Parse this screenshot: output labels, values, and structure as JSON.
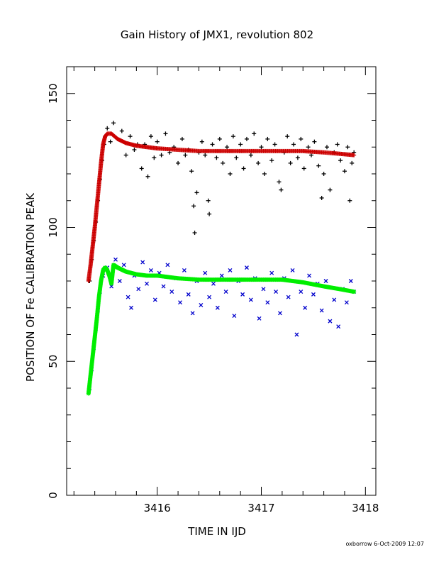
{
  "footer": "oxborrow   6-Oct-2009 12:07",
  "chart_data": {
    "type": "scatter",
    "title": "Gain History of JMX1, revolution 802",
    "xlabel": "TIME IN IJD",
    "ylabel": "POSITION OF Fe CALIBRATION PEAK",
    "xlim": [
      3415.13,
      3418.1
    ],
    "ylim": [
      0,
      160
    ],
    "xticks": [
      3416,
      3417,
      3418
    ],
    "xtick_labels": [
      "3416",
      "3417",
      "3418"
    ],
    "yticks": [
      0,
      50,
      100,
      150
    ],
    "ytick_labels": [
      "0",
      "50",
      "100",
      "150"
    ],
    "grid": false,
    "legend": "none",
    "series": [
      {
        "marker": "plus",
        "color": "#000000",
        "values": [
          [
            3415.35,
            80
          ],
          [
            3415.37,
            88
          ],
          [
            3415.39,
            95
          ],
          [
            3415.41,
            102
          ],
          [
            3415.43,
            110
          ],
          [
            3415.45,
            118
          ],
          [
            3415.47,
            125
          ],
          [
            3415.49,
            131
          ],
          [
            3415.5,
            134
          ],
          [
            3415.52,
            137
          ],
          [
            3415.55,
            132
          ],
          [
            3415.58,
            139
          ],
          [
            3415.62,
            133
          ],
          [
            3415.66,
            136
          ],
          [
            3415.7,
            127
          ],
          [
            3415.74,
            134
          ],
          [
            3415.78,
            129
          ],
          [
            3415.81,
            131
          ],
          [
            3415.85,
            122
          ],
          [
            3415.88,
            131
          ],
          [
            3415.91,
            119
          ],
          [
            3415.94,
            134
          ],
          [
            3415.97,
            126
          ],
          [
            3416.0,
            132
          ],
          [
            3416.04,
            127
          ],
          [
            3416.08,
            135
          ],
          [
            3416.12,
            128
          ],
          [
            3416.16,
            130
          ],
          [
            3416.2,
            124
          ],
          [
            3416.24,
            133
          ],
          [
            3416.27,
            127
          ],
          [
            3416.3,
            129
          ],
          [
            3416.33,
            121
          ],
          [
            3416.35,
            108
          ],
          [
            3416.36,
            98
          ],
          [
            3416.38,
            113
          ],
          [
            3416.4,
            128
          ],
          [
            3416.43,
            132
          ],
          [
            3416.46,
            127
          ],
          [
            3416.49,
            110
          ],
          [
            3416.5,
            105
          ],
          [
            3416.53,
            131
          ],
          [
            3416.57,
            126
          ],
          [
            3416.6,
            133
          ],
          [
            3416.63,
            124
          ],
          [
            3416.67,
            130
          ],
          [
            3416.7,
            120
          ],
          [
            3416.73,
            134
          ],
          [
            3416.76,
            126
          ],
          [
            3416.8,
            131
          ],
          [
            3416.83,
            122
          ],
          [
            3416.86,
            133
          ],
          [
            3416.9,
            127
          ],
          [
            3416.93,
            135
          ],
          [
            3416.97,
            124
          ],
          [
            3417.0,
            130
          ],
          [
            3417.03,
            120
          ],
          [
            3417.06,
            133
          ],
          [
            3417.1,
            125
          ],
          [
            3417.13,
            131
          ],
          [
            3417.17,
            117
          ],
          [
            3417.19,
            114
          ],
          [
            3417.22,
            128
          ],
          [
            3417.25,
            134
          ],
          [
            3417.28,
            124
          ],
          [
            3417.31,
            131
          ],
          [
            3417.35,
            126
          ],
          [
            3417.38,
            133
          ],
          [
            3417.41,
            122
          ],
          [
            3417.45,
            130
          ],
          [
            3417.48,
            127
          ],
          [
            3417.51,
            132
          ],
          [
            3417.55,
            123
          ],
          [
            3417.58,
            111
          ],
          [
            3417.6,
            120
          ],
          [
            3417.63,
            130
          ],
          [
            3417.66,
            114
          ],
          [
            3417.7,
            128
          ],
          [
            3417.73,
            131
          ],
          [
            3417.76,
            125
          ],
          [
            3417.8,
            121
          ],
          [
            3417.83,
            130
          ],
          [
            3417.85,
            110
          ],
          [
            3417.87,
            124
          ],
          [
            3417.89,
            128
          ]
        ]
      },
      {
        "marker": "cross",
        "color": "#0000cc",
        "values": [
          [
            3415.35,
            40
          ],
          [
            3415.37,
            47
          ],
          [
            3415.39,
            55
          ],
          [
            3415.41,
            62
          ],
          [
            3415.43,
            69
          ],
          [
            3415.45,
            76
          ],
          [
            3415.48,
            82
          ],
          [
            3415.52,
            85
          ],
          [
            3415.56,
            78
          ],
          [
            3415.6,
            88
          ],
          [
            3415.64,
            80
          ],
          [
            3415.68,
            86
          ],
          [
            3415.72,
            74
          ],
          [
            3415.75,
            70
          ],
          [
            3415.78,
            82
          ],
          [
            3415.82,
            77
          ],
          [
            3415.86,
            87
          ],
          [
            3415.9,
            79
          ],
          [
            3415.94,
            84
          ],
          [
            3415.98,
            73
          ],
          [
            3416.02,
            83
          ],
          [
            3416.06,
            78
          ],
          [
            3416.1,
            86
          ],
          [
            3416.14,
            76
          ],
          [
            3416.18,
            81
          ],
          [
            3416.22,
            72
          ],
          [
            3416.26,
            84
          ],
          [
            3416.3,
            75
          ],
          [
            3416.34,
            68
          ],
          [
            3416.38,
            80
          ],
          [
            3416.42,
            71
          ],
          [
            3416.46,
            83
          ],
          [
            3416.5,
            74
          ],
          [
            3416.54,
            79
          ],
          [
            3416.58,
            70
          ],
          [
            3416.62,
            82
          ],
          [
            3416.66,
            76
          ],
          [
            3416.7,
            84
          ],
          [
            3416.74,
            67
          ],
          [
            3416.78,
            80
          ],
          [
            3416.82,
            75
          ],
          [
            3416.86,
            85
          ],
          [
            3416.9,
            73
          ],
          [
            3416.94,
            81
          ],
          [
            3416.98,
            66
          ],
          [
            3417.02,
            77
          ],
          [
            3417.06,
            72
          ],
          [
            3417.1,
            83
          ],
          [
            3417.14,
            76
          ],
          [
            3417.18,
            68
          ],
          [
            3417.22,
            81
          ],
          [
            3417.26,
            74
          ],
          [
            3417.3,
            84
          ],
          [
            3417.34,
            60
          ],
          [
            3417.38,
            76
          ],
          [
            3417.42,
            70
          ],
          [
            3417.46,
            82
          ],
          [
            3417.5,
            75
          ],
          [
            3417.54,
            79
          ],
          [
            3417.58,
            69
          ],
          [
            3417.62,
            80
          ],
          [
            3417.66,
            65
          ],
          [
            3417.7,
            73
          ],
          [
            3417.74,
            63
          ],
          [
            3417.78,
            77
          ],
          [
            3417.82,
            72
          ],
          [
            3417.86,
            80
          ],
          [
            3417.89,
            76
          ]
        ]
      },
      {
        "marker": "plus",
        "color": "#cc0000",
        "values": [
          [
            3415.34,
            80
          ],
          [
            3415.36,
            86
          ],
          [
            3415.38,
            93
          ],
          [
            3415.4,
            100
          ],
          [
            3415.42,
            108
          ],
          [
            3415.44,
            116
          ],
          [
            3415.46,
            124
          ],
          [
            3415.48,
            131
          ],
          [
            3415.5,
            134
          ],
          [
            3415.52,
            135
          ],
          [
            3415.56,
            135
          ],
          [
            3415.62,
            133
          ],
          [
            3415.7,
            131.5
          ],
          [
            3415.8,
            130.5
          ],
          [
            3415.9,
            130
          ],
          [
            3416.0,
            129.5
          ],
          [
            3416.2,
            129
          ],
          [
            3416.4,
            128.5
          ],
          [
            3416.6,
            128.5
          ],
          [
            3416.8,
            128.5
          ],
          [
            3417.0,
            128.5
          ],
          [
            3417.2,
            128.5
          ],
          [
            3417.4,
            128.5
          ],
          [
            3417.6,
            128
          ],
          [
            3417.75,
            127.5
          ],
          [
            3417.89,
            127
          ]
        ]
      },
      {
        "marker": "star",
        "color": "#00ee00",
        "values": [
          [
            3415.34,
            38
          ],
          [
            3415.36,
            45
          ],
          [
            3415.38,
            52
          ],
          [
            3415.4,
            59
          ],
          [
            3415.42,
            66
          ],
          [
            3415.44,
            74
          ],
          [
            3415.46,
            80
          ],
          [
            3415.48,
            84
          ],
          [
            3415.5,
            85
          ],
          [
            3415.52,
            84
          ],
          [
            3415.54,
            82
          ],
          [
            3415.56,
            79
          ],
          [
            3415.58,
            86
          ],
          [
            3415.62,
            85
          ],
          [
            3415.7,
            83.5
          ],
          [
            3415.8,
            82.5
          ],
          [
            3415.9,
            82
          ],
          [
            3416.0,
            82
          ],
          [
            3416.2,
            81
          ],
          [
            3416.4,
            80.5
          ],
          [
            3416.6,
            80.5
          ],
          [
            3416.8,
            80.5
          ],
          [
            3417.0,
            80.5
          ],
          [
            3417.2,
            80.5
          ],
          [
            3417.4,
            79.5
          ],
          [
            3417.6,
            78
          ],
          [
            3417.75,
            77
          ],
          [
            3417.89,
            76
          ]
        ]
      }
    ]
  }
}
